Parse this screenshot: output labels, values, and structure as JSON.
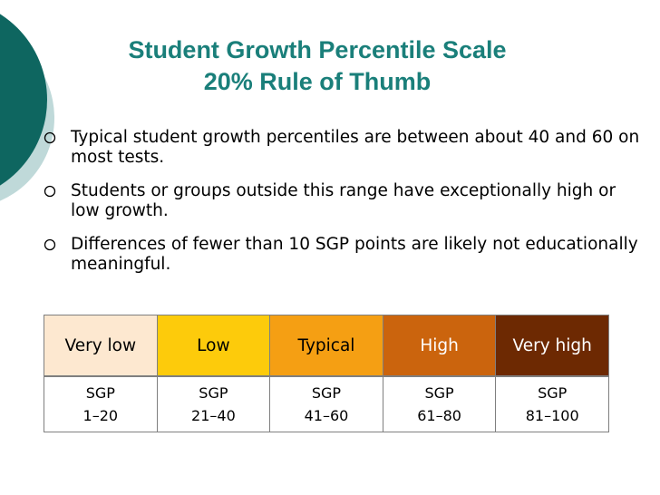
{
  "title": {
    "line1": "Student Growth Percentile Scale",
    "line2": "20% Rule of Thumb"
  },
  "bullets": [
    "Typical student growth percentiles are between about 40 and 60 on most tests.",
    "Students or groups outside this range have exceptionally high or low growth.",
    "Differences of fewer than 10 SGP points are likely not educationally meaningful."
  ],
  "scale": {
    "categories": [
      {
        "label": "Very low",
        "bg": "#fde8d0",
        "fg": "#000000",
        "sgp": "SGP",
        "range": "1–20"
      },
      {
        "label": "Low",
        "bg": "#fdcb0b",
        "fg": "#000000",
        "sgp": "SGP",
        "range": "21–40"
      },
      {
        "label": "Typical",
        "bg": "#f59f13",
        "fg": "#000000",
        "sgp": "SGP",
        "range": "41–60"
      },
      {
        "label": "High",
        "bg": "#cb640d",
        "fg": "#ffffff",
        "sgp": "SGP",
        "range": "61–80"
      },
      {
        "label": "Very high",
        "bg": "#6d2902",
        "fg": "#ffffff",
        "sgp": "SGP",
        "range": "81–100"
      }
    ]
  },
  "colors": {
    "title": "#1a7f7a",
    "accent_dark": "#0e6660",
    "accent_light": "#bfd9d9"
  }
}
